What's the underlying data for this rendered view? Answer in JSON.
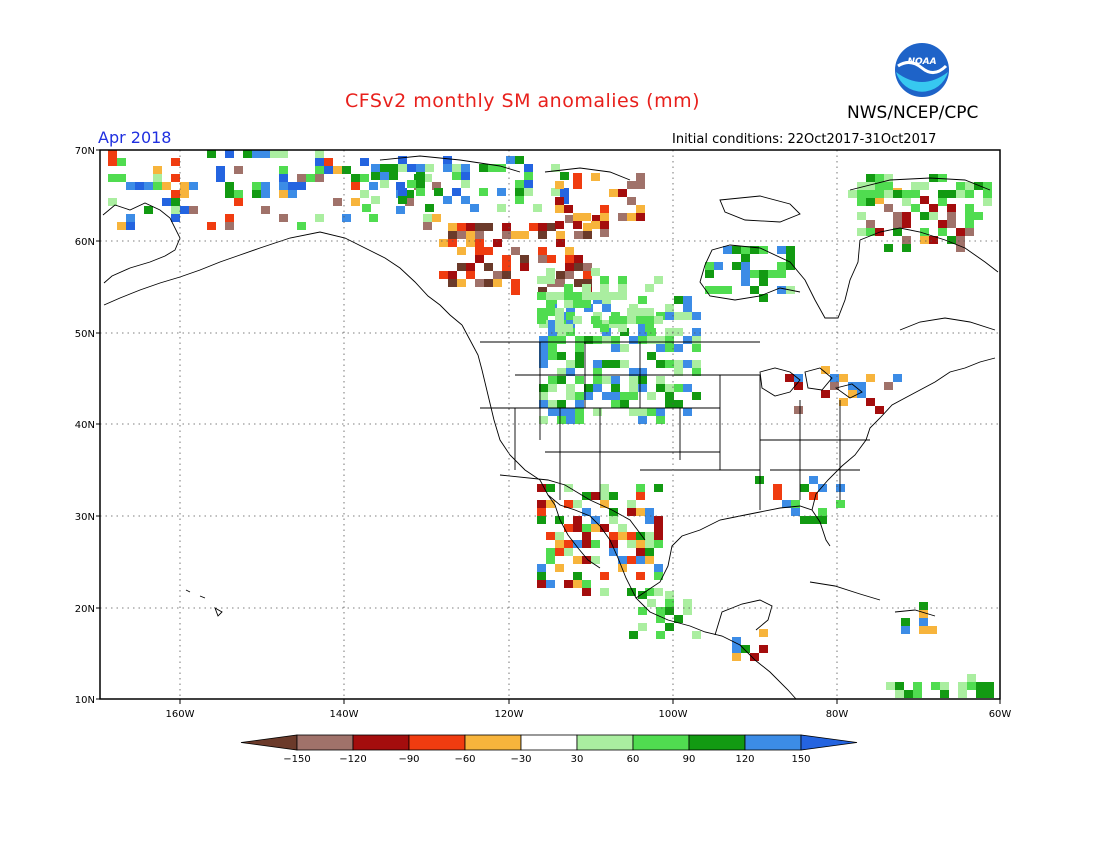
{
  "header": {
    "title": "CFSv2 monthly SM anomalies (mm)",
    "agency": "NWS/NCEP/CPC",
    "logo_text": "NOAA",
    "valid_month": "Apr 2018",
    "initial_conditions": "Initial conditions: 22Oct2017-31Oct2017"
  },
  "map": {
    "lat_labels": [
      "70N",
      "60N",
      "50N",
      "40N",
      "30N",
      "20N",
      "10N"
    ],
    "lon_labels": [
      "160W",
      "140W",
      "120W",
      "100W",
      "80W",
      "60W"
    ]
  },
  "colorbar": {
    "labels": [
      "-150",
      "-120",
      "-90",
      "-60",
      "-30",
      "30",
      "60",
      "90",
      "120",
      "150"
    ],
    "colors": [
      "#6b3a2a",
      "#a0726a",
      "#a40d0d",
      "#f03c10",
      "#f7b43c",
      "#ffffff",
      "#aaeea0",
      "#50dc50",
      "#129a12",
      "#3c8ce6",
      "#2464e0"
    ]
  }
}
